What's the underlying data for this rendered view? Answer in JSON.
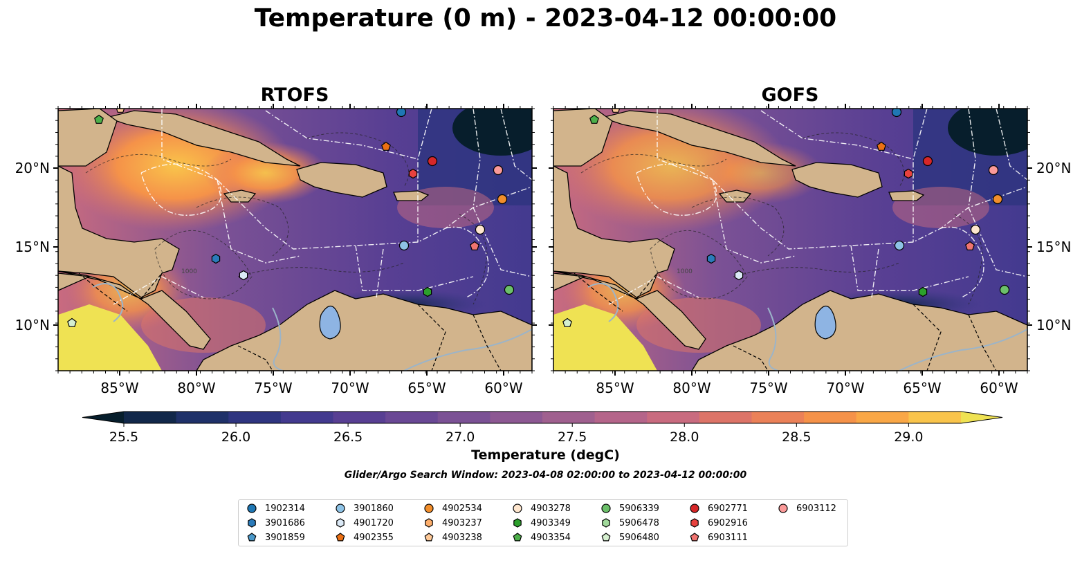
{
  "title": "Temperature (0 m) - 2023-04-12 00:00:00",
  "panels": [
    {
      "title": "RTOFS"
    },
    {
      "title": "GOFS"
    }
  ],
  "axes": {
    "lat_ticks": [
      "20°N",
      "15°N",
      "10°N"
    ],
    "lon_ticks": [
      "85°W",
      "80°W",
      "75°W",
      "70°W",
      "65°W",
      "60°W"
    ],
    "contour_label": "1000"
  },
  "colorbar": {
    "label": "Temperature (degC)",
    "ticks": [
      "25.5",
      "26.0",
      "26.5",
      "27.0",
      "27.5",
      "28.0",
      "28.5",
      "29.0"
    ],
    "colors": [
      "#071e2c",
      "#12284a",
      "#1f3169",
      "#2f3580",
      "#433a8f",
      "#583f93",
      "#6a4895",
      "#7b5195",
      "#8d5893",
      "#a0608f",
      "#b5658a",
      "#c96b7f",
      "#dd7468",
      "#eb8158",
      "#f59249",
      "#f9a746",
      "#f9c44b",
      "#efe253"
    ]
  },
  "search_window": "Glider/Argo Search Window: 2023-04-08 02:00:00 to 2023-04-12 00:00:00",
  "legend": [
    {
      "id": "1902314",
      "marker": "circle",
      "color": "#1f77b4"
    },
    {
      "id": "3901686",
      "marker": "hexagon",
      "color": "#2b7bba"
    },
    {
      "id": "3901859",
      "marker": "pentagon",
      "color": "#4a98c9"
    },
    {
      "id": "3901860",
      "marker": "circle",
      "color": "#8ec3e6"
    },
    {
      "id": "4901720",
      "marker": "hexagon",
      "color": "#dbe9f6"
    },
    {
      "id": "4902355",
      "marker": "pentagon",
      "color": "#ec7014"
    },
    {
      "id": "4902534",
      "marker": "circle",
      "color": "#f28e2b"
    },
    {
      "id": "4903237",
      "marker": "hexagon",
      "color": "#fdae6b"
    },
    {
      "id": "4903238",
      "marker": "pentagon",
      "color": "#fdc897"
    },
    {
      "id": "4903278",
      "marker": "circle",
      "color": "#fee6ce"
    },
    {
      "id": "4903349",
      "marker": "hexagon",
      "color": "#2ca02c"
    },
    {
      "id": "4903354",
      "marker": "pentagon",
      "color": "#4daf4a"
    },
    {
      "id": "5906339",
      "marker": "circle",
      "color": "#6cc06a"
    },
    {
      "id": "5906478",
      "marker": "hexagon",
      "color": "#a1d99b"
    },
    {
      "id": "5906480",
      "marker": "pentagon",
      "color": "#d5efcf"
    },
    {
      "id": "6902771",
      "marker": "circle",
      "color": "#d62728"
    },
    {
      "id": "6902916",
      "marker": "hexagon",
      "color": "#e8423e"
    },
    {
      "id": "6903111",
      "marker": "pentagon",
      "color": "#f07470"
    },
    {
      "id": "6903112",
      "marker": "circle",
      "color": "#fb9a99"
    }
  ]
}
